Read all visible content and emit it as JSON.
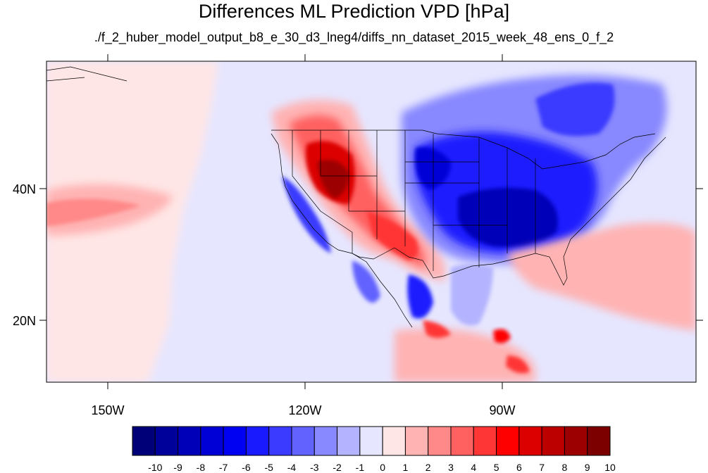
{
  "title": "Differences ML Prediction VPD [hPa]",
  "subtitle": "./f_2_huber_model_output_b8_e_30_d3_lneg4/diffs_nn_dataset_2015_week_48_ens_0_f_2",
  "axes": {
    "lat_labels": [
      "40N",
      "20N"
    ],
    "lon_labels": [
      "150W",
      "120W",
      "90W"
    ]
  },
  "colorbar": {
    "labels": [
      "-10",
      "-9",
      "-8",
      "-7",
      "-6",
      "-5",
      "-4",
      "-3",
      "-2",
      "-1",
      "0",
      "1",
      "2",
      "3",
      "4",
      "5",
      "6",
      "7",
      "8",
      "9",
      "10"
    ],
    "colors": [
      "#000078",
      "#00009a",
      "#0000b8",
      "#0000d6",
      "#0000f2",
      "#1a1aff",
      "#3b3bff",
      "#6262ff",
      "#8888ff",
      "#b3b3ff",
      "#e6e6ff",
      "#ffe6e6",
      "#ffb3b3",
      "#ff8888",
      "#ff6060",
      "#ff3636",
      "#ff0000",
      "#dc0000",
      "#bc0000",
      "#9c0000",
      "#7c0000"
    ]
  },
  "colors": {
    "background_pos": "#ffe6e6",
    "background_neg": "#e6e6ff",
    "coast": "#000000"
  }
}
